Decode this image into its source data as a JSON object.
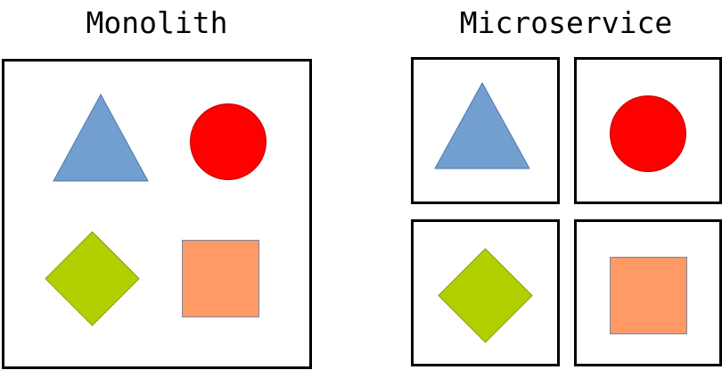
{
  "monolith": {
    "title": "Monolith",
    "shapes": [
      "triangle-icon",
      "circle-icon",
      "diamond-icon",
      "square-icon"
    ]
  },
  "microservice": {
    "title": "Microservice",
    "shapes": [
      "triangle-icon",
      "circle-icon",
      "diamond-icon",
      "square-icon"
    ]
  },
  "colors": {
    "triangle": "#729fcf",
    "circle": "#ff0000",
    "diamond": "#b2cf00",
    "square": "#ff9966",
    "border": "#000000"
  }
}
